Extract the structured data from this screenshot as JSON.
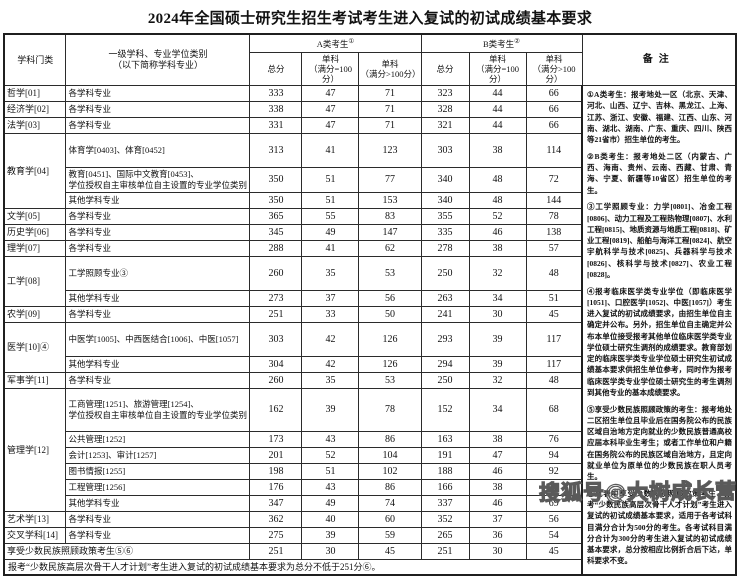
{
  "title": "2024年全国硕士研究生招生考试考生进入复试的初试成绩基本要求",
  "watermark": "搜狐号@大树成长营",
  "table": {
    "header": {
      "category": "学科门类",
      "major": "一级学科、专业学位类别\n（以下简称学科专业）",
      "group_a": "A类考生",
      "group_a_sup": "①",
      "group_b": "B类考生",
      "group_b_sup": "②",
      "total": "总分",
      "single_eq100": "单科\n（满分=100分）",
      "single_gt100": "单科\n（满分>100分）",
      "remarks": "备注"
    },
    "groups": [
      {
        "category": "哲学[01]",
        "rows": [
          {
            "major": "各学科专业",
            "a": [
              333,
              47,
              71
            ],
            "b": [
              323,
              44,
              66
            ]
          }
        ]
      },
      {
        "category": "经济学[02]",
        "rows": [
          {
            "major": "各学科专业",
            "a": [
              338,
              47,
              71
            ],
            "b": [
              328,
              44,
              66
            ]
          }
        ]
      },
      {
        "category": "法学[03]",
        "rows": [
          {
            "major": "各学科专业",
            "a": [
              331,
              47,
              71
            ],
            "b": [
              321,
              44,
              66
            ]
          }
        ]
      },
      {
        "category": "教育学[04]",
        "rows": [
          {
            "major": "体育学[0403]、体育[0452]",
            "a": [
              313,
              41,
              123
            ],
            "b": [
              303,
              38,
              114
            ]
          },
          {
            "major": "教育[0451]、国际中文教育[0453]、\n学位授权自主审核单位自主设置的专业学位类别",
            "a": [
              350,
              51,
              77
            ],
            "b": [
              340,
              48,
              72
            ]
          },
          {
            "major": "其他学科专业",
            "a": [
              350,
              51,
              153
            ],
            "b": [
              340,
              48,
              144
            ]
          }
        ]
      },
      {
        "category": "文学[05]",
        "rows": [
          {
            "major": "各学科专业",
            "a": [
              365,
              55,
              83
            ],
            "b": [
              355,
              52,
              78
            ]
          }
        ]
      },
      {
        "category": "历史学[06]",
        "rows": [
          {
            "major": "各学科专业",
            "a": [
              345,
              49,
              147
            ],
            "b": [
              335,
              46,
              138
            ]
          }
        ]
      },
      {
        "category": "理学[07]",
        "rows": [
          {
            "major": "各学科专业",
            "a": [
              288,
              41,
              62
            ],
            "b": [
              278,
              38,
              57
            ]
          }
        ]
      },
      {
        "category": "工学[08]",
        "rows": [
          {
            "major": "工学照顾专业③",
            "a": [
              260,
              35,
              53
            ],
            "b": [
              250,
              32,
              48
            ]
          },
          {
            "major": "其他学科专业",
            "a": [
              273,
              37,
              56
            ],
            "b": [
              263,
              34,
              51
            ]
          }
        ]
      },
      {
        "category": "农学[09]",
        "rows": [
          {
            "major": "各学科专业",
            "a": [
              251,
              33,
              50
            ],
            "b": [
              241,
              30,
              45
            ]
          }
        ]
      },
      {
        "category": "医学[10]④",
        "rows": [
          {
            "major": "中医学[1005]、中西医结合[1006]、中医[1057]",
            "a": [
              303,
              42,
              126
            ],
            "b": [
              293,
              39,
              117
            ]
          },
          {
            "major": "其他学科专业",
            "a": [
              304,
              42,
              126
            ],
            "b": [
              294,
              39,
              117
            ]
          }
        ]
      },
      {
        "category": "军事学[11]",
        "rows": [
          {
            "major": "各学科专业",
            "a": [
              260,
              35,
              53
            ],
            "b": [
              250,
              32,
              48
            ]
          }
        ]
      },
      {
        "category": "管理学[12]",
        "rows": [
          {
            "major": "工商管理[1251]、旅游管理[1254]、\n学位授权自主审核单位自主设置的专业学位类别",
            "a": [
              162,
              39,
              78
            ],
            "b": [
              152,
              34,
              68
            ]
          },
          {
            "major": "公共管理[1252]",
            "a": [
              173,
              43,
              86
            ],
            "b": [
              163,
              38,
              76
            ]
          },
          {
            "major": "会计[1253]、审计[1257]",
            "a": [
              201,
              52,
              104
            ],
            "b": [
              191,
              47,
              94
            ]
          },
          {
            "major": "图书情报[1255]",
            "a": [
              198,
              51,
              102
            ],
            "b": [
              188,
              46,
              92
            ]
          },
          {
            "major": "工程管理[1256]",
            "a": [
              176,
              43,
              86
            ],
            "b": [
              166,
              38,
              76
            ]
          },
          {
            "major": "其他学科专业",
            "a": [
              347,
              49,
              74
            ],
            "b": [
              337,
              46,
              69
            ]
          }
        ]
      },
      {
        "category": "艺术学[13]",
        "rows": [
          {
            "major": "各学科专业",
            "a": [
              362,
              40,
              60
            ],
            "b": [
              352,
              37,
              56
            ]
          }
        ]
      },
      {
        "category": "交叉学科[14]",
        "rows": [
          {
            "major": "各学科专业",
            "a": [
              275,
              39,
              59
            ],
            "b": [
              265,
              36,
              54
            ]
          }
        ]
      },
      {
        "category": "享受少数民族照顾政策考生⑤⑥",
        "span2": true,
        "rows": [
          {
            "major": "",
            "a": [
              251,
              30,
              45
            ],
            "b": [
              251,
              30,
              45
            ]
          }
        ]
      }
    ],
    "footer": "报考“少数民族高层次骨干人才计划”考生进入复试的初试成绩基本要求为总分不低于251分⑥。"
  },
  "notes": [
    "①A类考生：报考地处一区（北京、天津、河北、山西、辽宁、吉林、黑龙江、上海、江苏、浙江、安徽、福建、江西、山东、河南、湖北、湖南、广东、重庆、四川、陕西等21省市）招生单位的考生。",
    "②B类考生：报考地处二区（内蒙古、广西、海南、贵州、云南、西藏、甘肃、青海、宁夏、新疆等10省区）招生单位的考生。",
    "③工学照顾专业：力学[0801]、冶金工程[0806]、动力工程及工程热物理[0807]、水利工程[0815]、地质资源与地质工程[0818]、矿业工程[0819]、船舶与海洋工程[0824]、航空宇航科学与技术[0825]、兵器科学与技术[0826]、核科学与技术[0827]、农业工程[0828]。",
    "④报考临床医学类专业学位（即临床医学[1051]、口腔医学[1052]、中医[1057]）考生进入复试的初试成绩要求，由招生单位自主确定并公布。另外，招生单位自主确定并公布本单位接受报考其他单位临床医学类专业学位硕士研究生调剂的成绩要求。教育部划定的临床医学类专业学位硕士研究生初试成绩基本要求供招生单位参考，同时作为报考临床医学类专业学位硕士研究生的考生调剂到其他专业的基本成绩要求。",
    "⑤享受少数民族照顾政策的考生：报考地处二区招生单位且毕业后在国务院公布的民族区域自治地方定向就业的少数民族普通高校应届本科毕业生考生；或者工作单位和户籍在国务院公布的民族区域自治地方，且定向就业单位为原单位的少数民族在职人员考生。",
    "⑥此表中享受少数民族照顾政策考生、报考“少数民族高层次骨干人才计划”考生进入复试的初试成绩基本要求，适用于各考试科目满分合计为500分的考生。各考试科目满分合计为300分的考生进入复试的初试成绩基本要求，总分按相应比例折合后下达，单科要求不变。"
  ]
}
